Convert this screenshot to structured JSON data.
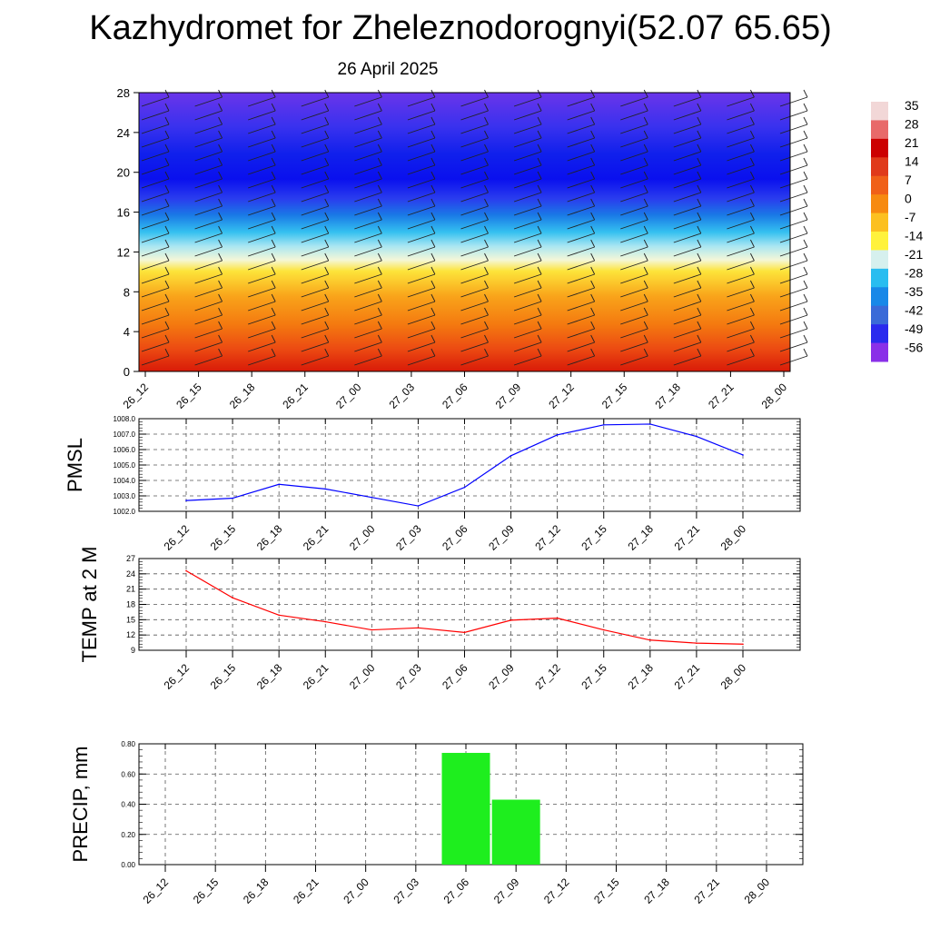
{
  "title": "Kazhydromet for Zheleznodorognyi(52.07 65.65)",
  "subtitle": "26 April 2025",
  "time_labels": [
    "26_12",
    "26_15",
    "26_18",
    "26_21",
    "27_00",
    "27_03",
    "27_06",
    "27_09",
    "27_12",
    "27_15",
    "27_18",
    "27_21",
    "28_00"
  ],
  "colorbar": {
    "labels": [
      "35",
      "28",
      "21",
      "14",
      "7",
      "0",
      "-7",
      "-14",
      "-21",
      "-28",
      "-35",
      "-42",
      "-49",
      "-56"
    ],
    "colors": [
      "#f2d7d7",
      "#e86a6a",
      "#cc0000",
      "#e03a1a",
      "#f06018",
      "#f78a10",
      "#fcc020",
      "#fff23c",
      "#d6f0ee",
      "#29bdf0",
      "#1888e8",
      "#3a6ad8",
      "#2a2aee",
      "#8a30e8"
    ]
  },
  "chart_data": [
    {
      "type": "heatmap",
      "ylabel": "",
      "y_ticks": [
        0,
        4,
        8,
        12,
        16,
        20,
        24,
        28
      ],
      "ylim": [
        0,
        28
      ],
      "x": [
        "26_12",
        "26_15",
        "26_18",
        "26_21",
        "27_00",
        "27_03",
        "27_06",
        "27_09",
        "27_12",
        "27_15",
        "27_18",
        "27_21",
        "28_00"
      ],
      "legend_placement": "right"
    },
    {
      "type": "line",
      "ylabel": "PMSL",
      "x": [
        "26_12",
        "26_15",
        "26_18",
        "26_21",
        "27_00",
        "27_03",
        "27_06",
        "27_09",
        "27_12",
        "27_15",
        "27_18",
        "27_21",
        "28_00"
      ],
      "y_ticks": [
        "1002.0",
        "1003.0",
        "1004.0",
        "1005.0",
        "1006.0",
        "1007.0",
        "1008.0"
      ],
      "ylim": [
        1002,
        1008
      ],
      "values": [
        1002.7,
        1002.85,
        1003.75,
        1003.45,
        1002.9,
        1002.35,
        1003.55,
        1005.6,
        1006.95,
        1007.6,
        1007.65,
        1006.85,
        1005.65
      ],
      "color": "#0000ff",
      "grid": true
    },
    {
      "type": "line",
      "ylabel": "TEMP at 2 M",
      "x": [
        "26_12",
        "26_15",
        "26_18",
        "26_21",
        "27_00",
        "27_03",
        "27_06",
        "27_09",
        "27_12",
        "27_15",
        "27_18",
        "27_21",
        "28_00"
      ],
      "y_ticks": [
        "9",
        "12",
        "15",
        "18",
        "21",
        "24",
        "27"
      ],
      "ylim": [
        9,
        27
      ],
      "values": [
        24.6,
        19.3,
        15.9,
        14.6,
        13.0,
        13.4,
        12.5,
        14.9,
        15.3,
        13.0,
        11.0,
        10.4,
        10.2
      ],
      "color": "#ff0000",
      "grid": true
    },
    {
      "type": "bar",
      "ylabel": "PRECIP, mm",
      "categories": [
        "26_12",
        "26_15",
        "26_18",
        "26_21",
        "27_00",
        "27_03",
        "27_06",
        "27_09",
        "27_12",
        "27_15",
        "27_18",
        "27_21",
        "28_00"
      ],
      "y_ticks": [
        "0.00",
        "0.20",
        "0.40",
        "0.60",
        "0.80"
      ],
      "ylim": [
        0,
        0.8
      ],
      "values": [
        0,
        0,
        0,
        0,
        0,
        0,
        0.74,
        0.43,
        0,
        0,
        0,
        0,
        0
      ],
      "color": "#1eee1e",
      "grid": true
    }
  ]
}
